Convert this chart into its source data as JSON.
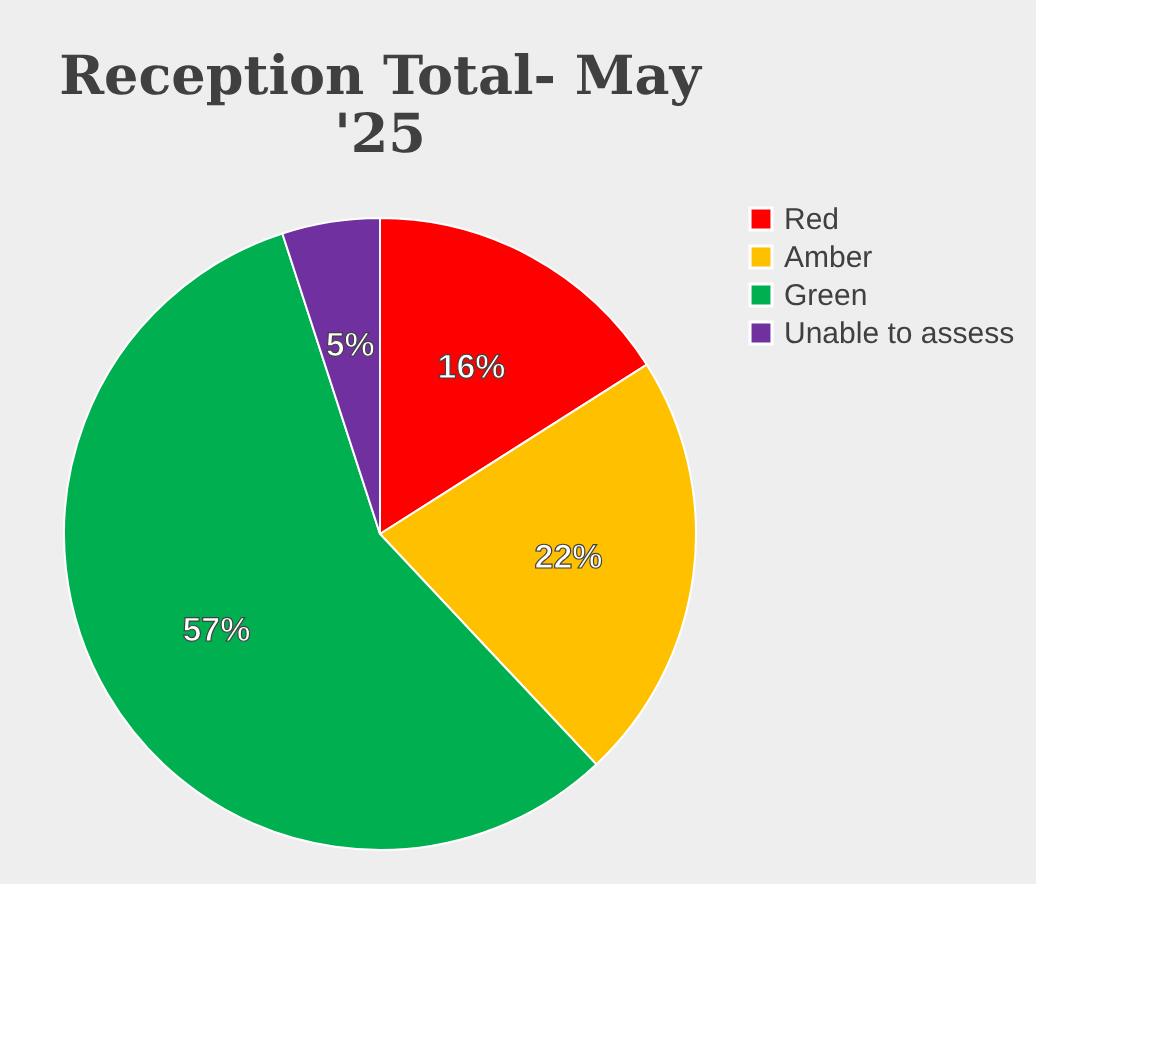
{
  "chart_data": {
    "type": "pie",
    "title": "Reception Total- May '25",
    "categories": [
      "Red",
      "Amber",
      "Green",
      "Unable to assess"
    ],
    "values": [
      16,
      22,
      57,
      5
    ],
    "colors": [
      "#ff0000",
      "#ffc000",
      "#00b050",
      "#7030a0"
    ],
    "value_labels": [
      "16%",
      "22%",
      "57%",
      "5%"
    ],
    "legend": "right"
  }
}
